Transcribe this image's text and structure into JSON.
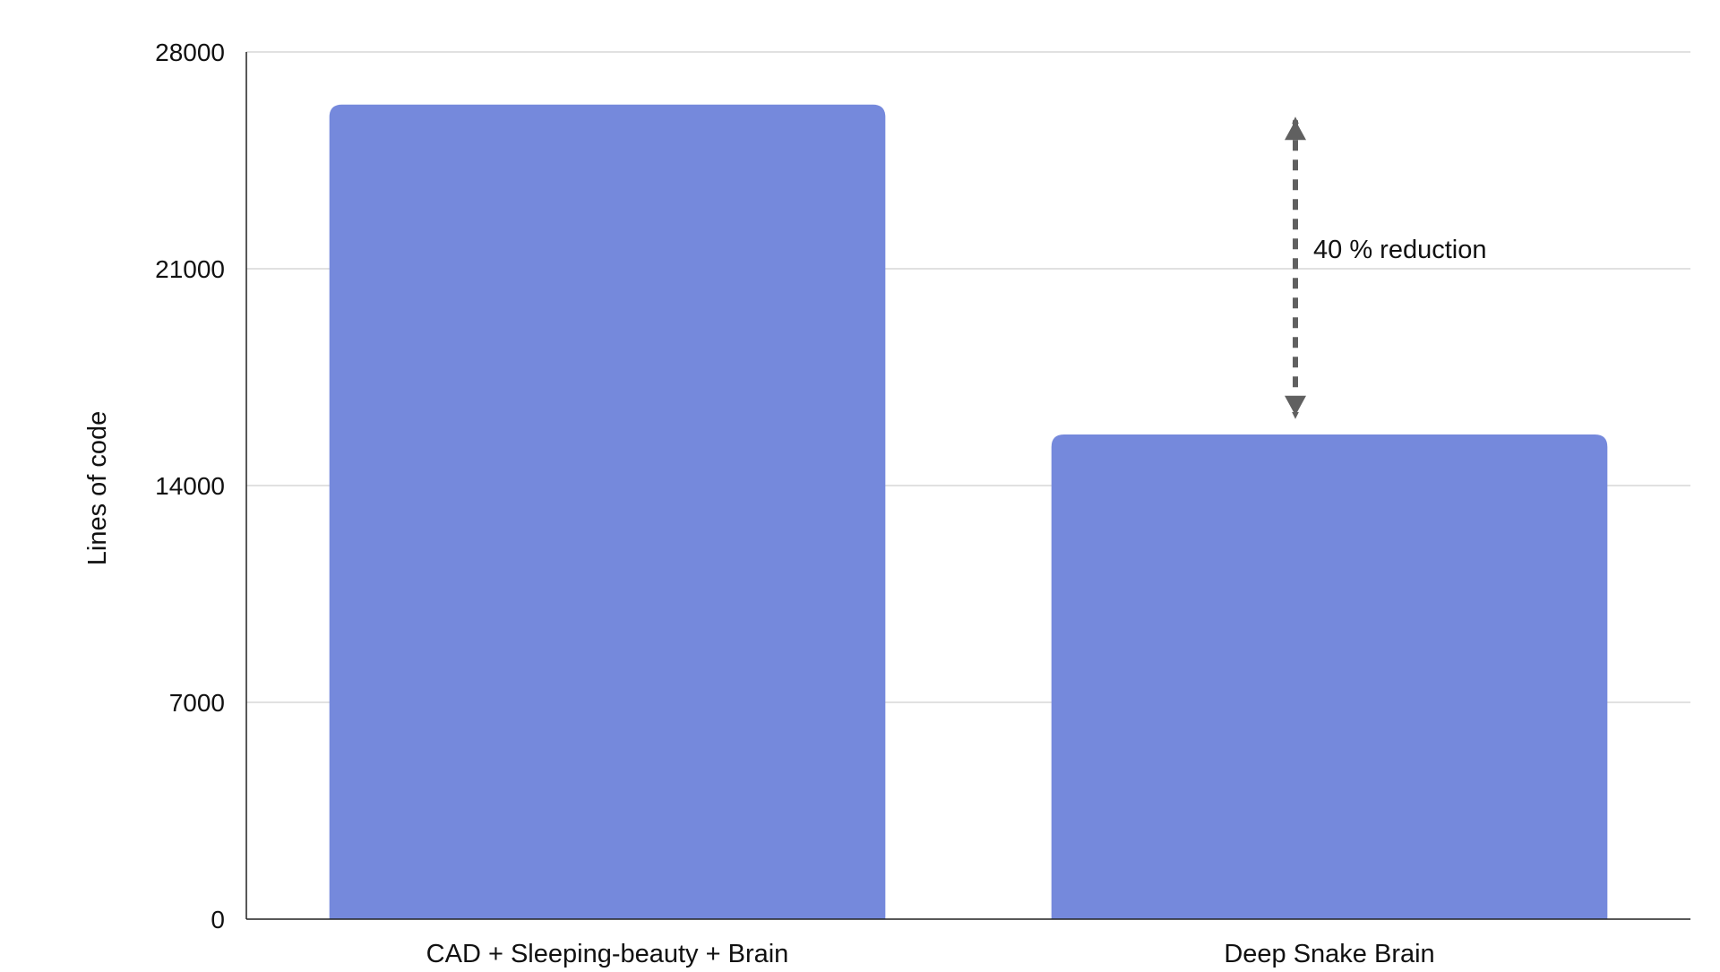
{
  "chart_data": {
    "type": "bar",
    "title": "",
    "xlabel": "",
    "ylabel": "Lines of code",
    "ylim": [
      0,
      28000
    ],
    "yticks": [
      0,
      7000,
      14000,
      21000,
      28000
    ],
    "categories": [
      "CAD + Sleeping-beauty + Brain",
      "Deep Snake Brain"
    ],
    "values": [
      26300,
      15650
    ],
    "bar_color": "#7589dc",
    "grid": true,
    "legend": "none",
    "annotations": [
      {
        "text": "40 % reduction",
        "type": "double-arrow",
        "from_value": 26200,
        "to_value": 15800,
        "category_index": 1,
        "color": "#606060"
      }
    ]
  }
}
